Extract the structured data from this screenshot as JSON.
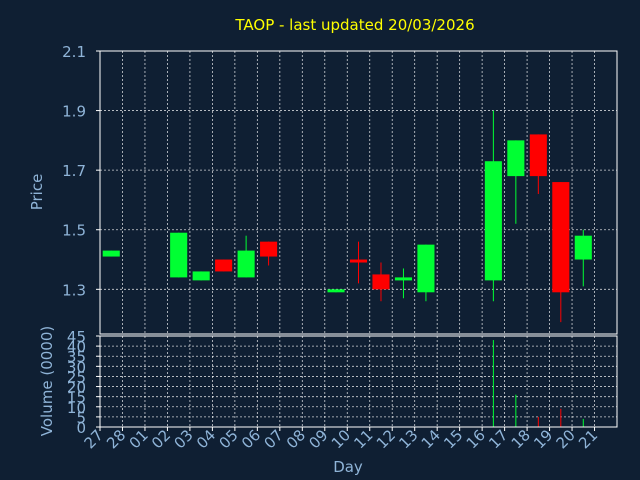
{
  "colors": {
    "background": "#0f1f33",
    "axis": "#ffffff",
    "grid": "#ffffff",
    "title": "#ffff00",
    "label": "#8fb4d8",
    "up": "#00ff33",
    "down": "#ff0000"
  },
  "chart_data": {
    "type": "candlestick",
    "title": "TAOP - last updated 20/03/2026",
    "xlabel": "Day",
    "ylabel": "Price",
    "vol_ylabel": "Volume (0000)",
    "ylim": [
      1.15,
      2.1
    ],
    "yticks": [
      1.3,
      1.5,
      1.7,
      1.9,
      2.1
    ],
    "vol_ylim": [
      0,
      45
    ],
    "vol_yticks": [
      0,
      5,
      10,
      15,
      20,
      25,
      30,
      35,
      40,
      45
    ],
    "grid": true,
    "x": [
      "27",
      "28",
      "01",
      "02",
      "03",
      "04",
      "05",
      "06",
      "07",
      "08",
      "09",
      "10",
      "11",
      "12",
      "13",
      "14",
      "15",
      "16",
      "17",
      "18",
      "19",
      "20",
      "21"
    ],
    "candles": [
      {
        "x": "27",
        "open": 1.41,
        "high": 1.43,
        "low": 1.41,
        "close": 1.43
      },
      {
        "x": "02",
        "open": 1.34,
        "high": 1.49,
        "low": 1.34,
        "close": 1.49
      },
      {
        "x": "03",
        "open": 1.33,
        "high": 1.36,
        "low": 1.33,
        "close": 1.36
      },
      {
        "x": "04",
        "open": 1.4,
        "high": 1.4,
        "low": 1.36,
        "close": 1.36
      },
      {
        "x": "05",
        "open": 1.34,
        "high": 1.48,
        "low": 1.34,
        "close": 1.43
      },
      {
        "x": "06",
        "open": 1.46,
        "high": 1.46,
        "low": 1.38,
        "close": 1.41
      },
      {
        "x": "09",
        "open": 1.29,
        "high": 1.3,
        "low": 1.29,
        "close": 1.3
      },
      {
        "x": "10",
        "open": 1.4,
        "high": 1.46,
        "low": 1.32,
        "close": 1.39
      },
      {
        "x": "11",
        "open": 1.35,
        "high": 1.39,
        "low": 1.26,
        "close": 1.3
      },
      {
        "x": "12",
        "open": 1.33,
        "high": 1.37,
        "low": 1.27,
        "close": 1.34
      },
      {
        "x": "13",
        "open": 1.29,
        "high": 1.45,
        "low": 1.26,
        "close": 1.45
      },
      {
        "x": "16",
        "open": 1.33,
        "high": 1.9,
        "low": 1.26,
        "close": 1.73
      },
      {
        "x": "17",
        "open": 1.68,
        "high": 1.8,
        "low": 1.52,
        "close": 1.8
      },
      {
        "x": "18",
        "open": 1.82,
        "high": 1.82,
        "low": 1.62,
        "close": 1.68
      },
      {
        "x": "19",
        "open": 1.66,
        "high": 1.66,
        "low": 1.19,
        "close": 1.29
      },
      {
        "x": "20",
        "open": 1.4,
        "high": 1.5,
        "low": 1.31,
        "close": 1.48
      }
    ],
    "volume": [
      {
        "x": "16",
        "value": 43,
        "up": true
      },
      {
        "x": "17",
        "value": 16,
        "up": true
      },
      {
        "x": "18",
        "value": 5,
        "up": false
      },
      {
        "x": "19",
        "value": 9,
        "up": false
      },
      {
        "x": "20",
        "value": 4,
        "up": true
      }
    ]
  }
}
